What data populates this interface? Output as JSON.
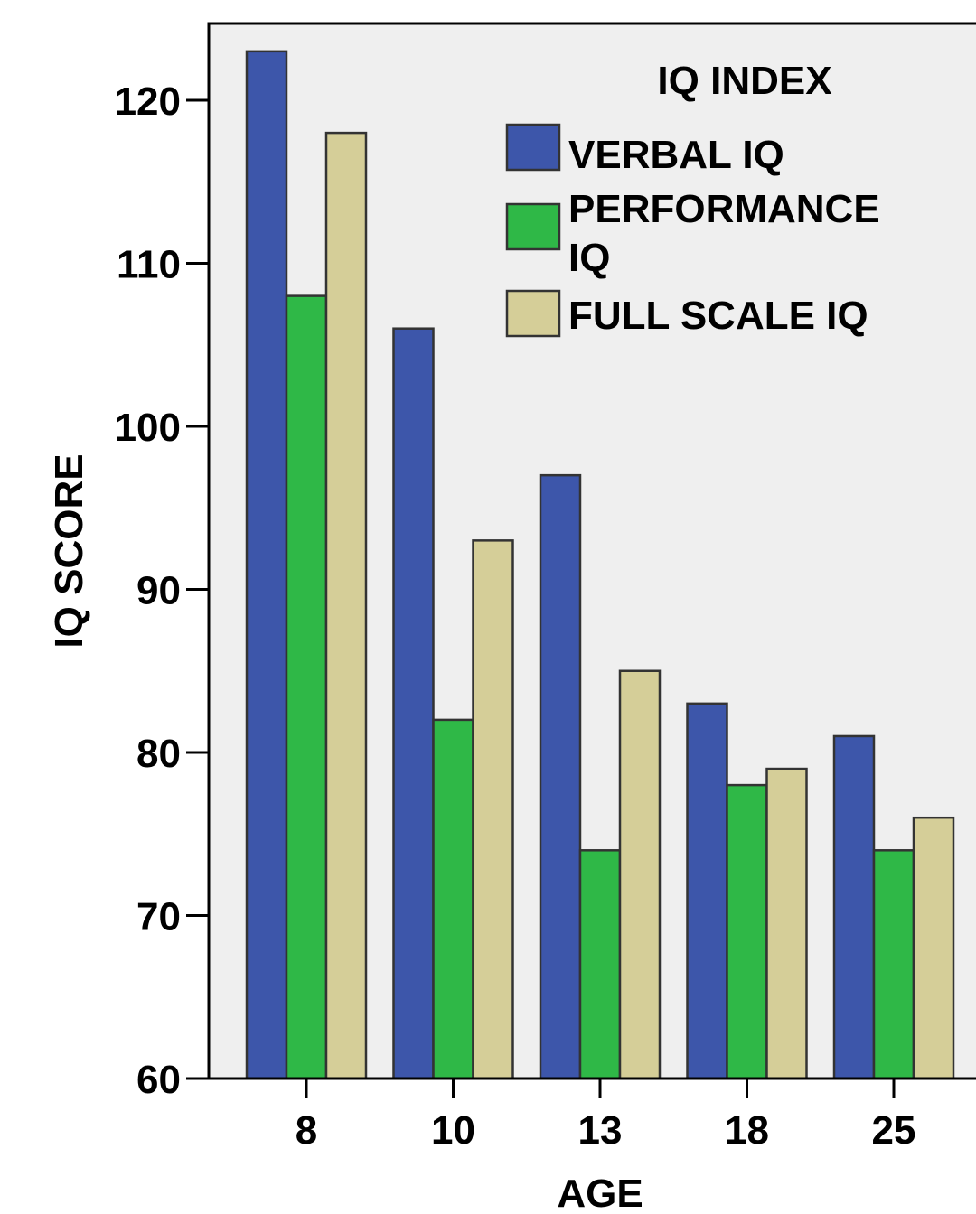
{
  "chart_data": {
    "type": "bar",
    "xlabel": "AGE",
    "ylabel": "IQ SCORE",
    "categories": [
      "8",
      "10",
      "13",
      "18",
      "25"
    ],
    "ylim": [
      60,
      124
    ],
    "yticks": [
      60,
      70,
      80,
      90,
      100,
      110,
      120
    ],
    "legend": {
      "title": "IQ INDEX",
      "placement": "top-right"
    },
    "series": [
      {
        "name": "VERBAL IQ",
        "label_lines": [
          "VERBAL IQ"
        ],
        "color": "#3d56aa",
        "values": [
          123,
          106,
          97,
          83,
          81
        ]
      },
      {
        "name": "PERFORMANCE IQ",
        "label_lines": [
          "PERFORMANCE",
          "IQ"
        ],
        "color": "#2fb847",
        "values": [
          108,
          82,
          74,
          78,
          74
        ]
      },
      {
        "name": "FULL SCALE IQ",
        "label_lines": [
          "FULL SCALE IQ"
        ],
        "color": "#d5ce98",
        "values": [
          118,
          93,
          85,
          79,
          76
        ]
      }
    ],
    "plot_background": "#efefef",
    "grid": false
  }
}
